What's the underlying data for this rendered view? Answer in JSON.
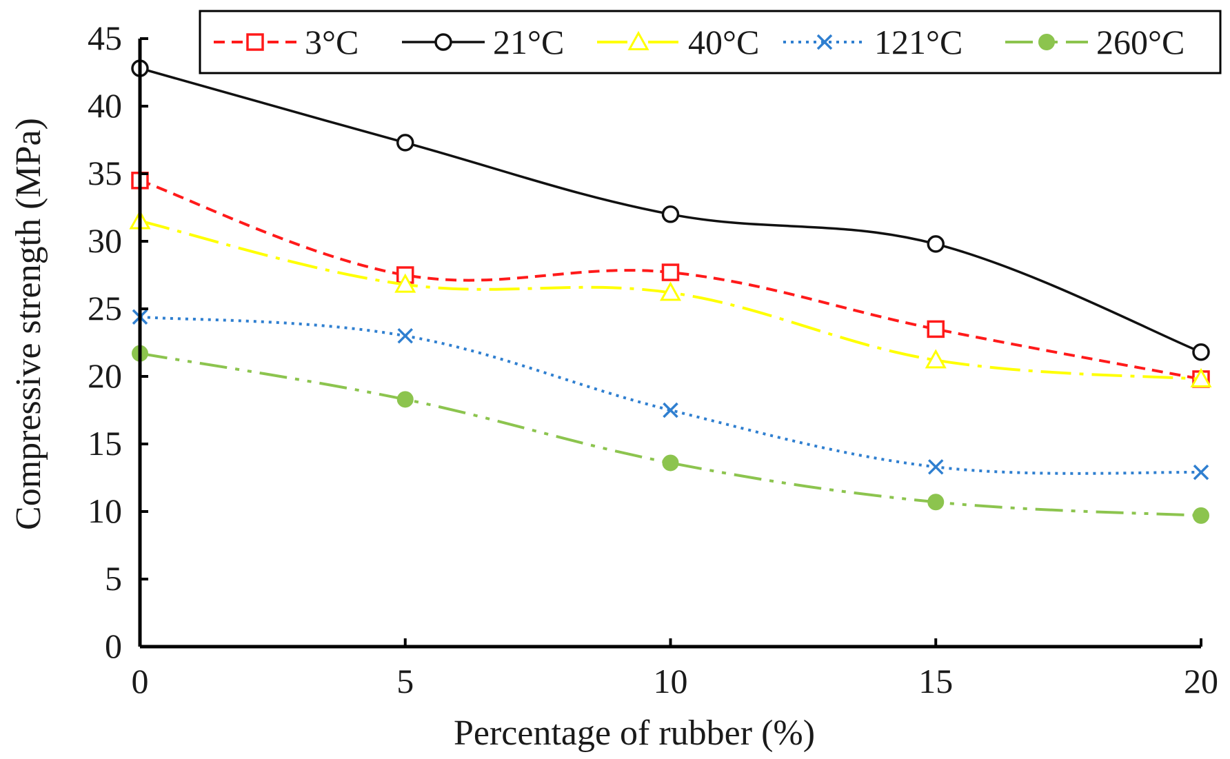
{
  "chart_data": {
    "type": "line",
    "title": "",
    "xlabel": "Percentage  of rubber (%)",
    "ylabel": "Compressive strength (MPa)",
    "x": [
      0,
      5,
      10,
      15,
      20
    ],
    "xlim": [
      0,
      20
    ],
    "ylim": [
      0,
      45
    ],
    "xticks": [
      "0",
      "5",
      "10",
      "15",
      "20"
    ],
    "yticks": [
      "0",
      "5",
      "10",
      "15",
      "20",
      "25",
      "30",
      "35",
      "40",
      "45"
    ],
    "grid": false,
    "legend_position": "top",
    "series": [
      {
        "name": "3°C",
        "values": [
          34.5,
          27.5,
          27.7,
          23.5,
          19.8
        ],
        "color": "#ff1a1a",
        "dash": "dashed",
        "marker": "square"
      },
      {
        "name": "21°C",
        "values": [
          42.8,
          37.3,
          32.0,
          29.8,
          21.8
        ],
        "color": "#111111",
        "dash": "solid",
        "marker": "circle"
      },
      {
        "name": "40°C",
        "values": [
          31.5,
          26.8,
          26.2,
          21.2,
          19.8
        ],
        "color": "#ffff00",
        "dash": "dashdot",
        "marker": "triangle"
      },
      {
        "name": "121°C",
        "values": [
          24.4,
          23.0,
          17.5,
          13.3,
          12.9
        ],
        "color": "#2f7fd0",
        "dash": "dotted",
        "marker": "x"
      },
      {
        "name": "260°C",
        "values": [
          21.7,
          18.3,
          13.6,
          10.7,
          9.7
        ],
        "color": "#8cc44e",
        "dash": "dashdotdot",
        "marker": "filled-circle"
      }
    ]
  }
}
